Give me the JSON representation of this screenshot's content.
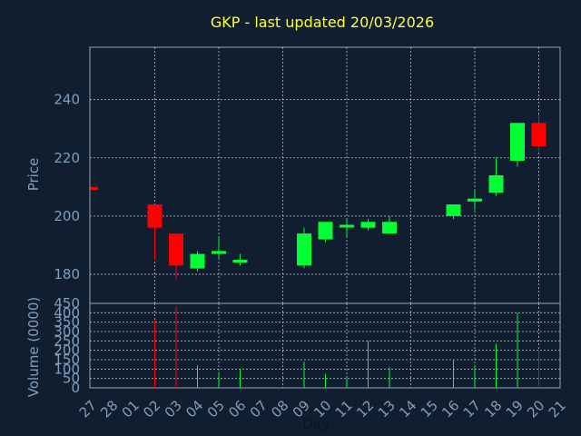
{
  "title": "GKP - last updated 20/03/2026",
  "colors": {
    "background": "#111e30",
    "title": "#ffff3c",
    "axis_text": "#7f9fbf",
    "grid": "#b4bcc8",
    "frame": "#9aa3b0",
    "up": "#00ff33",
    "down": "#ff0000"
  },
  "chart_data": [
    {
      "type": "candlestick",
      "ylabel": "Price",
      "ylim": [
        170,
        258
      ],
      "yticks": [
        180,
        200,
        220,
        240
      ],
      "grid": true,
      "days": [
        "27",
        "28",
        "01",
        "02",
        "03",
        "04",
        "05",
        "06",
        "07",
        "08",
        "09",
        "10",
        "11",
        "12",
        "13",
        "14",
        "15",
        "16",
        "17",
        "18",
        "19",
        "20",
        "21"
      ],
      "candles": [
        {
          "day": "27",
          "open": 210,
          "high": 210,
          "low": 209,
          "close": 209
        },
        {
          "day": "02",
          "open": 204,
          "high": 204,
          "low": 185,
          "close": 196
        },
        {
          "day": "03",
          "open": 194,
          "high": 194,
          "low": 178,
          "close": 183
        },
        {
          "day": "04",
          "open": 182,
          "high": 188,
          "low": 181,
          "close": 187
        },
        {
          "day": "05",
          "open": 187,
          "high": 193,
          "low": 185,
          "close": 188
        },
        {
          "day": "06",
          "open": 184,
          "high": 187,
          "low": 183,
          "close": 185
        },
        {
          "day": "09",
          "open": 183,
          "high": 196,
          "low": 182,
          "close": 194
        },
        {
          "day": "10",
          "open": 192,
          "high": 198,
          "low": 191,
          "close": 198
        },
        {
          "day": "11",
          "open": 197,
          "high": 199,
          "low": 193,
          "close": 197
        },
        {
          "day": "12",
          "open": 196,
          "high": 199,
          "low": 195,
          "close": 198
        },
        {
          "day": "13",
          "open": 194,
          "high": 200,
          "low": 194,
          "close": 198
        },
        {
          "day": "16",
          "open": 200,
          "high": 204,
          "low": 199,
          "close": 204
        },
        {
          "day": "17",
          "open": 205,
          "high": 209,
          "low": 202,
          "close": 206
        },
        {
          "day": "18",
          "open": 208,
          "high": 220,
          "low": 207,
          "close": 214
        },
        {
          "day": "19",
          "open": 219,
          "high": 232,
          "low": 217,
          "close": 232
        },
        {
          "day": "20",
          "open": 232,
          "high": 235,
          "low": 222,
          "close": 224
        }
      ]
    },
    {
      "type": "bar",
      "xlabel": "Day",
      "ylabel": "Volume (0000)",
      "ylim": [
        0,
        450
      ],
      "yticks": [
        0,
        50,
        100,
        150,
        200,
        250,
        300,
        350,
        400,
        450
      ],
      "grid": true,
      "volumes": [
        {
          "day": "02",
          "value": 360,
          "direction": "down"
        },
        {
          "day": "03",
          "value": 435,
          "direction": "down"
        },
        {
          "day": "04",
          "value": 120,
          "direction": "up"
        },
        {
          "day": "05",
          "value": 85,
          "direction": "up"
        },
        {
          "day": "06",
          "value": 100,
          "direction": "up"
        },
        {
          "day": "09",
          "value": 140,
          "direction": "up"
        },
        {
          "day": "10",
          "value": 75,
          "direction": "up"
        },
        {
          "day": "11",
          "value": 50,
          "direction": "up"
        },
        {
          "day": "12",
          "value": 250,
          "direction": "up"
        },
        {
          "day": "13",
          "value": 110,
          "direction": "up"
        },
        {
          "day": "16",
          "value": 150,
          "direction": "up"
        },
        {
          "day": "17",
          "value": 120,
          "direction": "up"
        },
        {
          "day": "18",
          "value": 235,
          "direction": "up"
        },
        {
          "day": "19",
          "value": 400,
          "direction": "up"
        },
        {
          "day": "20",
          "value": 200,
          "direction": "down"
        }
      ]
    }
  ]
}
